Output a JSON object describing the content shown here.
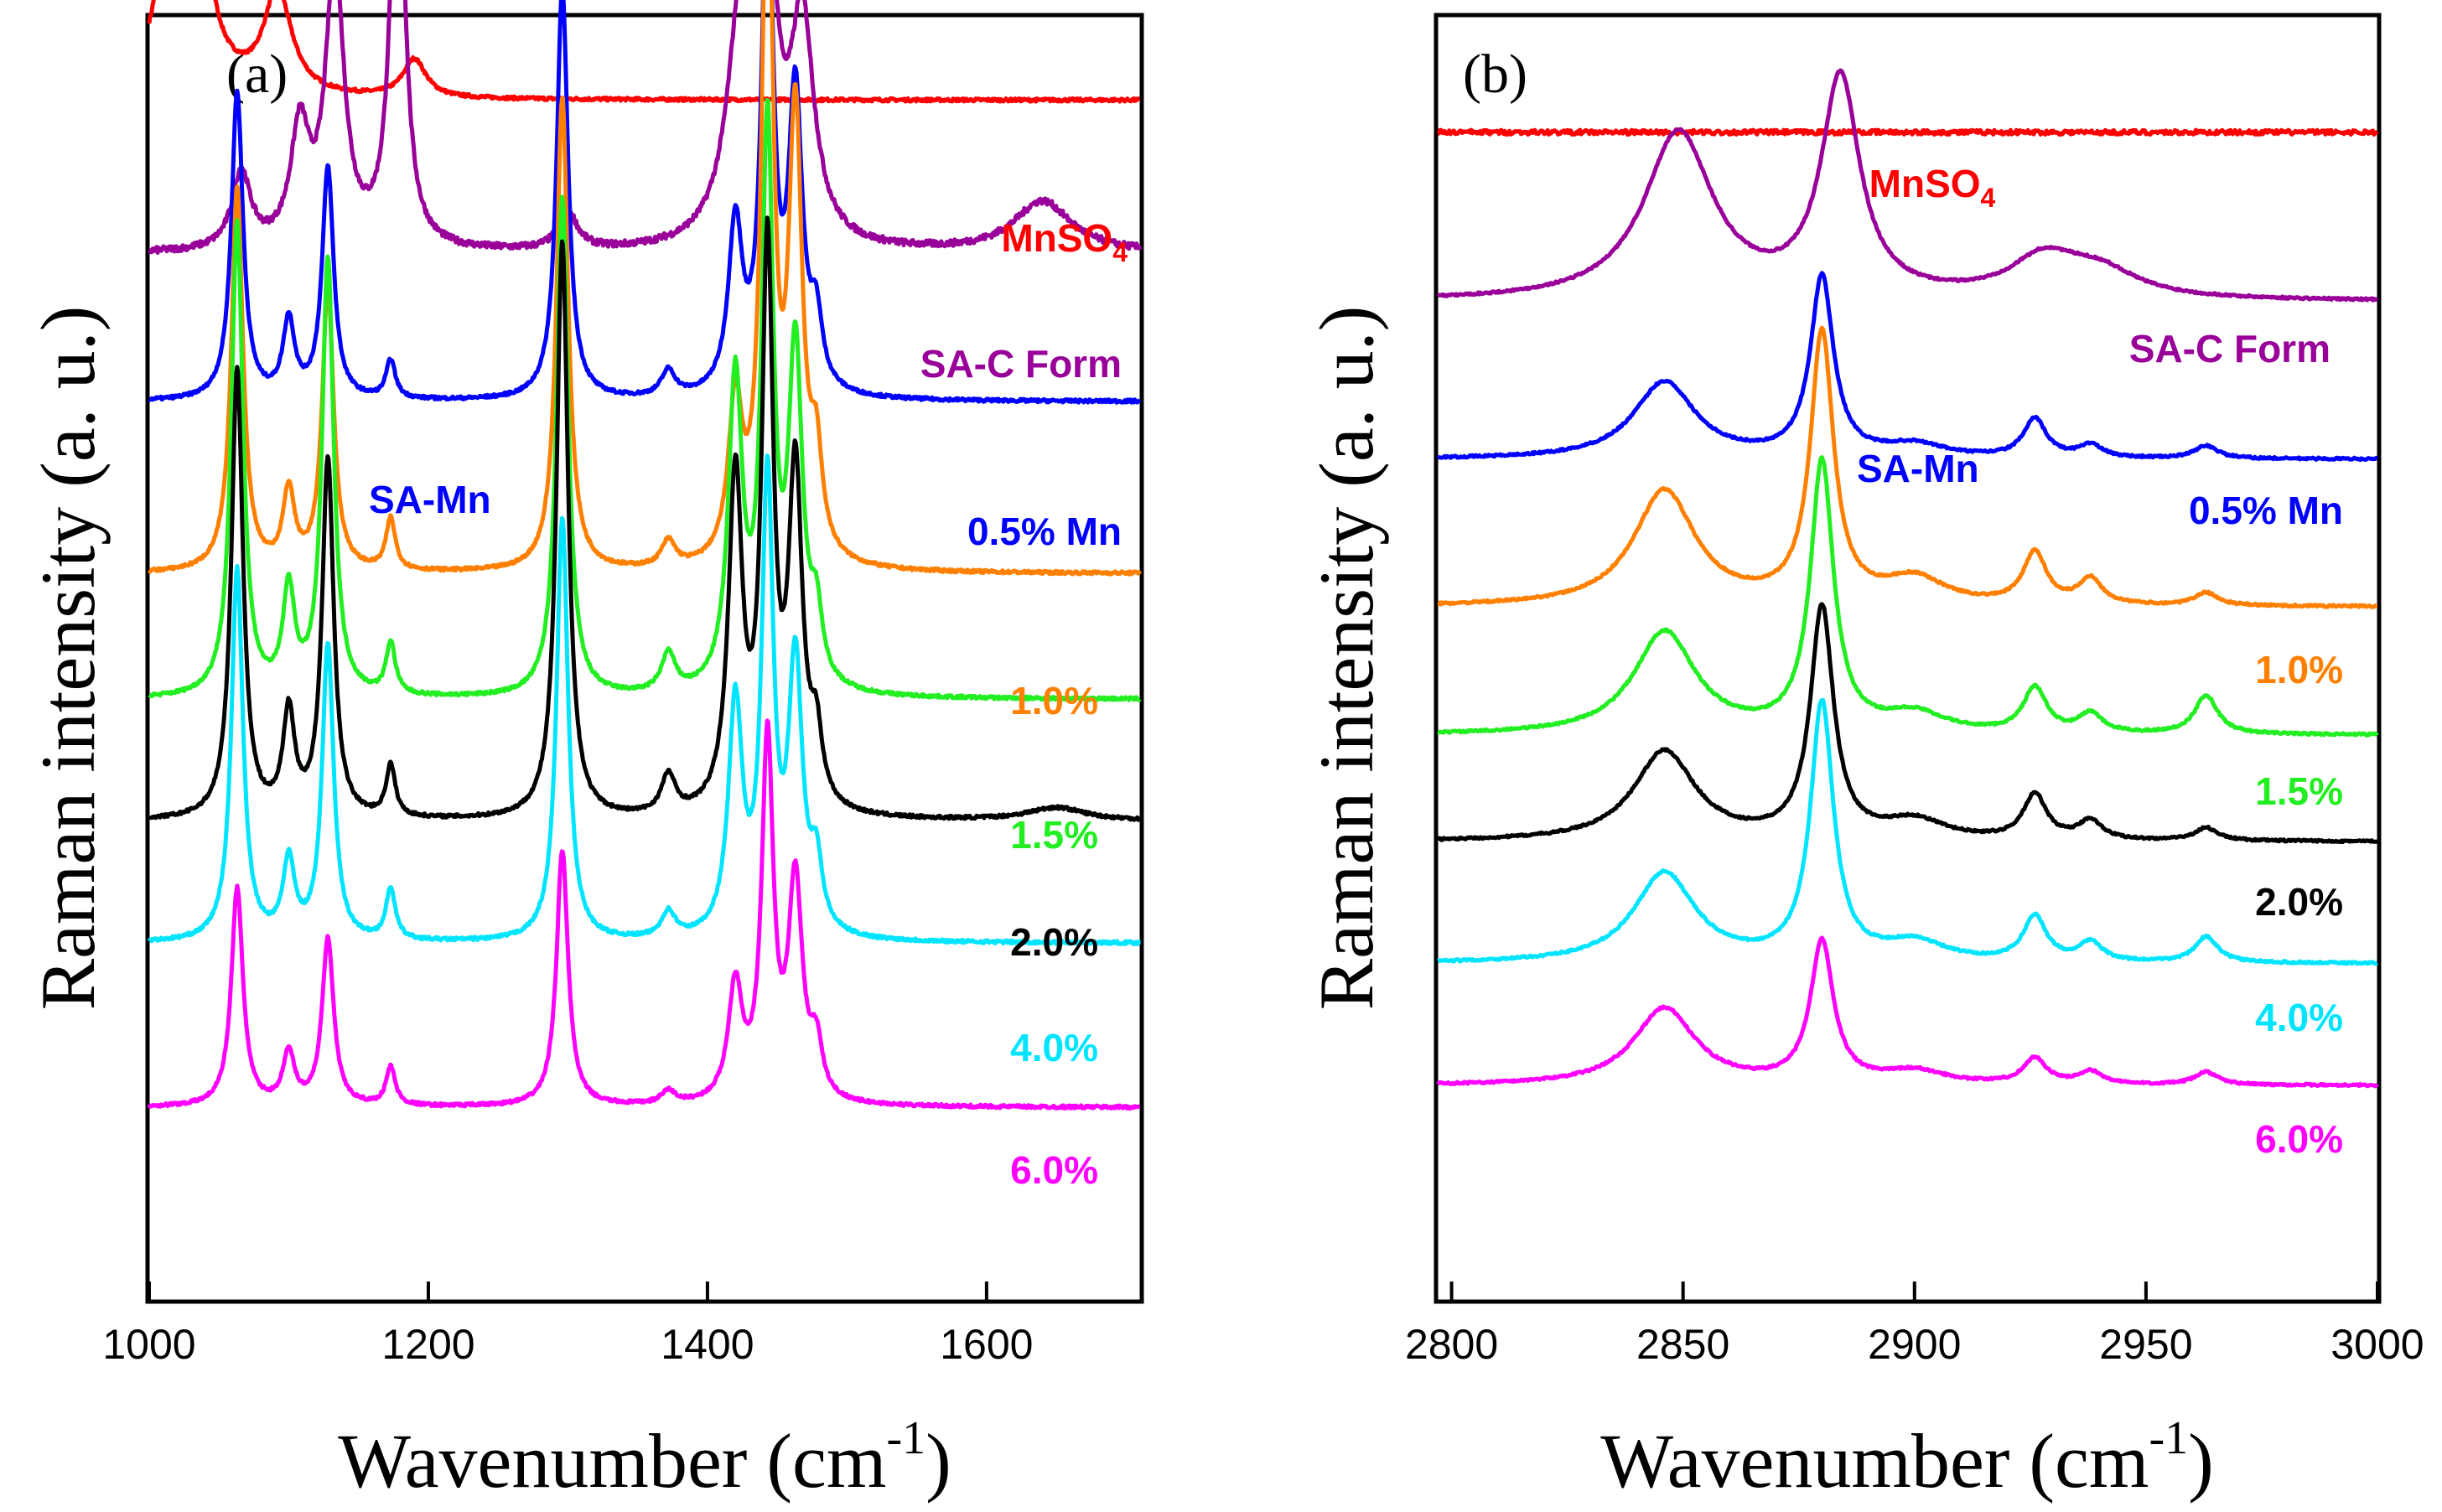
{
  "chart_data": [
    {
      "type": "line",
      "panel": "(a)",
      "xlabel": "Wavenumber (cm",
      "xlabel_sup": "-1",
      "xlabel_end": ")",
      "ylabel": "Raman intensity (a. u.)",
      "xlim": [
        1000,
        1710
      ],
      "xticks": [
        "1000",
        "1200",
        "1400",
        "1600"
      ],
      "xtick_values": [
        1000,
        1200,
        1400,
        1600
      ],
      "y_ticks_shown": false,
      "annotation": "SA-Mn",
      "series": [
        {
          "name": "MnSO",
          "sub": "4",
          "color": "#ff0000",
          "baseline": 0.935,
          "peaks": [
            [
              1025,
              0.82,
              7
            ],
            [
              1092,
              0.08,
              12
            ],
            [
              1190,
              0.03,
              10
            ]
          ]
        },
        {
          "name": "SA-C Form",
          "color": "#990099",
          "baseline": 0.815,
          "peaks": [
            [
              1066,
              0.06,
              8
            ],
            [
              1108,
              0.09,
              8
            ],
            [
              1133,
              0.22,
              8
            ],
            [
              1178,
              0.35,
              6
            ],
            [
              1300,
              0.03,
              8
            ],
            [
              1425,
              0.19,
              12
            ],
            [
              1443,
              0.21,
              8
            ],
            [
              1468,
              0.17,
              10
            ],
            [
              1640,
              0.04,
              25
            ]
          ]
        },
        {
          "name": "0.5% Mn",
          "color": "#0000ff",
          "baseline": 0.7,
          "peaks": [
            [
              1063,
              0.24,
              5
            ],
            [
              1100,
              0.06,
              5
            ],
            [
              1128,
              0.18,
              5
            ],
            [
              1173,
              0.03,
              4
            ],
            [
              1296,
              0.32,
              5
            ],
            [
              1372,
              0.02,
              6
            ],
            [
              1420,
              0.13,
              6
            ],
            [
              1443,
              0.4,
              5
            ],
            [
              1463,
              0.23,
              6
            ],
            [
              1478,
              0.05,
              5
            ]
          ]
        },
        {
          "name": "1.0%",
          "color": "#ff8000",
          "baseline": 0.566,
          "peaks": [
            [
              1063,
              0.3,
              5
            ],
            [
              1100,
              0.06,
              5
            ],
            [
              1128,
              0.22,
              5
            ],
            [
              1173,
              0.04,
              4
            ],
            [
              1296,
              0.37,
              5
            ],
            [
              1372,
              0.02,
              6
            ],
            [
              1420,
              0.12,
              6
            ],
            [
              1443,
              0.55,
              5
            ],
            [
              1463,
              0.34,
              6
            ],
            [
              1478,
              0.07,
              5
            ]
          ]
        },
        {
          "name": "1.5%",
          "color": "#22ee22",
          "baseline": 0.468,
          "peaks": [
            [
              1063,
              0.37,
              5
            ],
            [
              1100,
              0.08,
              5
            ],
            [
              1128,
              0.34,
              5
            ],
            [
              1173,
              0.04,
              4
            ],
            [
              1296,
              0.39,
              5
            ],
            [
              1372,
              0.03,
              6
            ],
            [
              1420,
              0.24,
              6
            ],
            [
              1443,
              0.43,
              5
            ],
            [
              1463,
              0.26,
              6
            ],
            [
              1478,
              0.05,
              5
            ]
          ]
        },
        {
          "name": "2.0%",
          "color": "#000000",
          "baseline": 0.373,
          "peaks": [
            [
              1063,
              0.35,
              5
            ],
            [
              1100,
              0.08,
              5
            ],
            [
              1128,
              0.28,
              5
            ],
            [
              1173,
              0.04,
              4
            ],
            [
              1296,
              0.45,
              5
            ],
            [
              1372,
              0.03,
              6
            ],
            [
              1420,
              0.26,
              6
            ],
            [
              1443,
              0.43,
              5
            ],
            [
              1463,
              0.26,
              6
            ],
            [
              1478,
              0.05,
              5
            ],
            [
              1650,
              0.01,
              25
            ]
          ]
        },
        {
          "name": "4.0%",
          "color": "#00e5ff",
          "baseline": 0.278,
          "peaks": [
            [
              1063,
              0.29,
              5
            ],
            [
              1100,
              0.06,
              5
            ],
            [
              1128,
              0.23,
              5
            ],
            [
              1173,
              0.04,
              4
            ],
            [
              1296,
              0.33,
              5
            ],
            [
              1372,
              0.02,
              6
            ],
            [
              1420,
              0.18,
              6
            ],
            [
              1443,
              0.35,
              5
            ],
            [
              1463,
              0.21,
              6
            ],
            [
              1478,
              0.05,
              5
            ]
          ]
        },
        {
          "name": "6.0%",
          "color": "#ff00ff",
          "baseline": 0.15,
          "peaks": [
            [
              1063,
              0.17,
              5
            ],
            [
              1100,
              0.04,
              5
            ],
            [
              1128,
              0.13,
              5
            ],
            [
              1173,
              0.03,
              4
            ],
            [
              1296,
              0.2,
              5
            ],
            [
              1372,
              0.01,
              6
            ],
            [
              1420,
              0.09,
              6
            ],
            [
              1443,
              0.28,
              5
            ],
            [
              1463,
              0.17,
              6
            ],
            [
              1478,
              0.04,
              5
            ]
          ]
        }
      ]
    },
    {
      "type": "line",
      "panel": "(b)",
      "xlabel": "Wavenumber (cm",
      "xlabel_sup": "-1",
      "xlabel_end": ")",
      "ylabel": "Raman intensity (a. u.)",
      "xlim": [
        2797,
        3000
      ],
      "xticks": [
        "2800",
        "2850",
        "2900",
        "2950",
        "3000"
      ],
      "xtick_values": [
        2800,
        2850,
        2900,
        2950,
        3000
      ],
      "y_ticks_shown": false,
      "annotation": "SA-Mn",
      "series": [
        {
          "name": "MnSO",
          "sub": "4",
          "color": "#ff0000",
          "baseline": 0.91,
          "peaks": []
        },
        {
          "name": "SA-C Form",
          "color": "#990099",
          "baseline": 0.778,
          "peaks": [
            [
              2849,
              0.13,
              9
            ],
            [
              2884,
              0.17,
              5
            ],
            [
              2928,
              0.03,
              9
            ],
            [
              2940,
              0.02,
              10
            ]
          ]
        },
        {
          "name": "0.5% Mn",
          "color": "#0000ff",
          "baseline": 0.655,
          "peaks": [
            [
              2846,
              0.06,
              8
            ],
            [
              2880,
              0.14,
              3
            ],
            [
              2900,
              0.01,
              8
            ],
            [
              2926,
              0.03,
              3
            ],
            [
              2938,
              0.01,
              3
            ],
            [
              2963,
              0.01,
              3
            ]
          ]
        },
        {
          "name": "1.0%",
          "color": "#ff8000",
          "baseline": 0.54,
          "peaks": [
            [
              2846,
              0.09,
              8
            ],
            [
              2880,
              0.21,
              3
            ],
            [
              2900,
              0.02,
              8
            ],
            [
              2926,
              0.04,
              3
            ],
            [
              2938,
              0.02,
              3
            ],
            [
              2963,
              0.01,
              3
            ]
          ]
        },
        {
          "name": "1.5%",
          "color": "#22ee22",
          "baseline": 0.44,
          "peaks": [
            [
              2846,
              0.08,
              8
            ],
            [
              2880,
              0.21,
              3
            ],
            [
              2900,
              0.015,
              8
            ],
            [
              2926,
              0.035,
              3
            ],
            [
              2938,
              0.015,
              3
            ],
            [
              2963,
              0.03,
              3
            ]
          ]
        },
        {
          "name": "2.0%",
          "color": "#000000",
          "baseline": 0.357,
          "peaks": [
            [
              2846,
              0.07,
              8
            ],
            [
              2880,
              0.18,
              3
            ],
            [
              2900,
              0.015,
              8
            ],
            [
              2926,
              0.035,
              3
            ],
            [
              2938,
              0.015,
              3
            ],
            [
              2963,
              0.01,
              3
            ]
          ]
        },
        {
          "name": "4.0%",
          "color": "#00e5ff",
          "baseline": 0.262,
          "peaks": [
            [
              2846,
              0.07,
              8
            ],
            [
              2880,
              0.2,
              3
            ],
            [
              2900,
              0.015,
              8
            ],
            [
              2926,
              0.035,
              3
            ],
            [
              2938,
              0.015,
              3
            ],
            [
              2963,
              0.02,
              3
            ]
          ]
        },
        {
          "name": "6.0%",
          "color": "#ff00ff",
          "baseline": 0.167,
          "peaks": [
            [
              2846,
              0.06,
              8
            ],
            [
              2880,
              0.11,
              3
            ],
            [
              2900,
              0.01,
              8
            ],
            [
              2926,
              0.02,
              3
            ],
            [
              2938,
              0.01,
              3
            ],
            [
              2963,
              0.01,
              3
            ]
          ]
        }
      ]
    }
  ]
}
